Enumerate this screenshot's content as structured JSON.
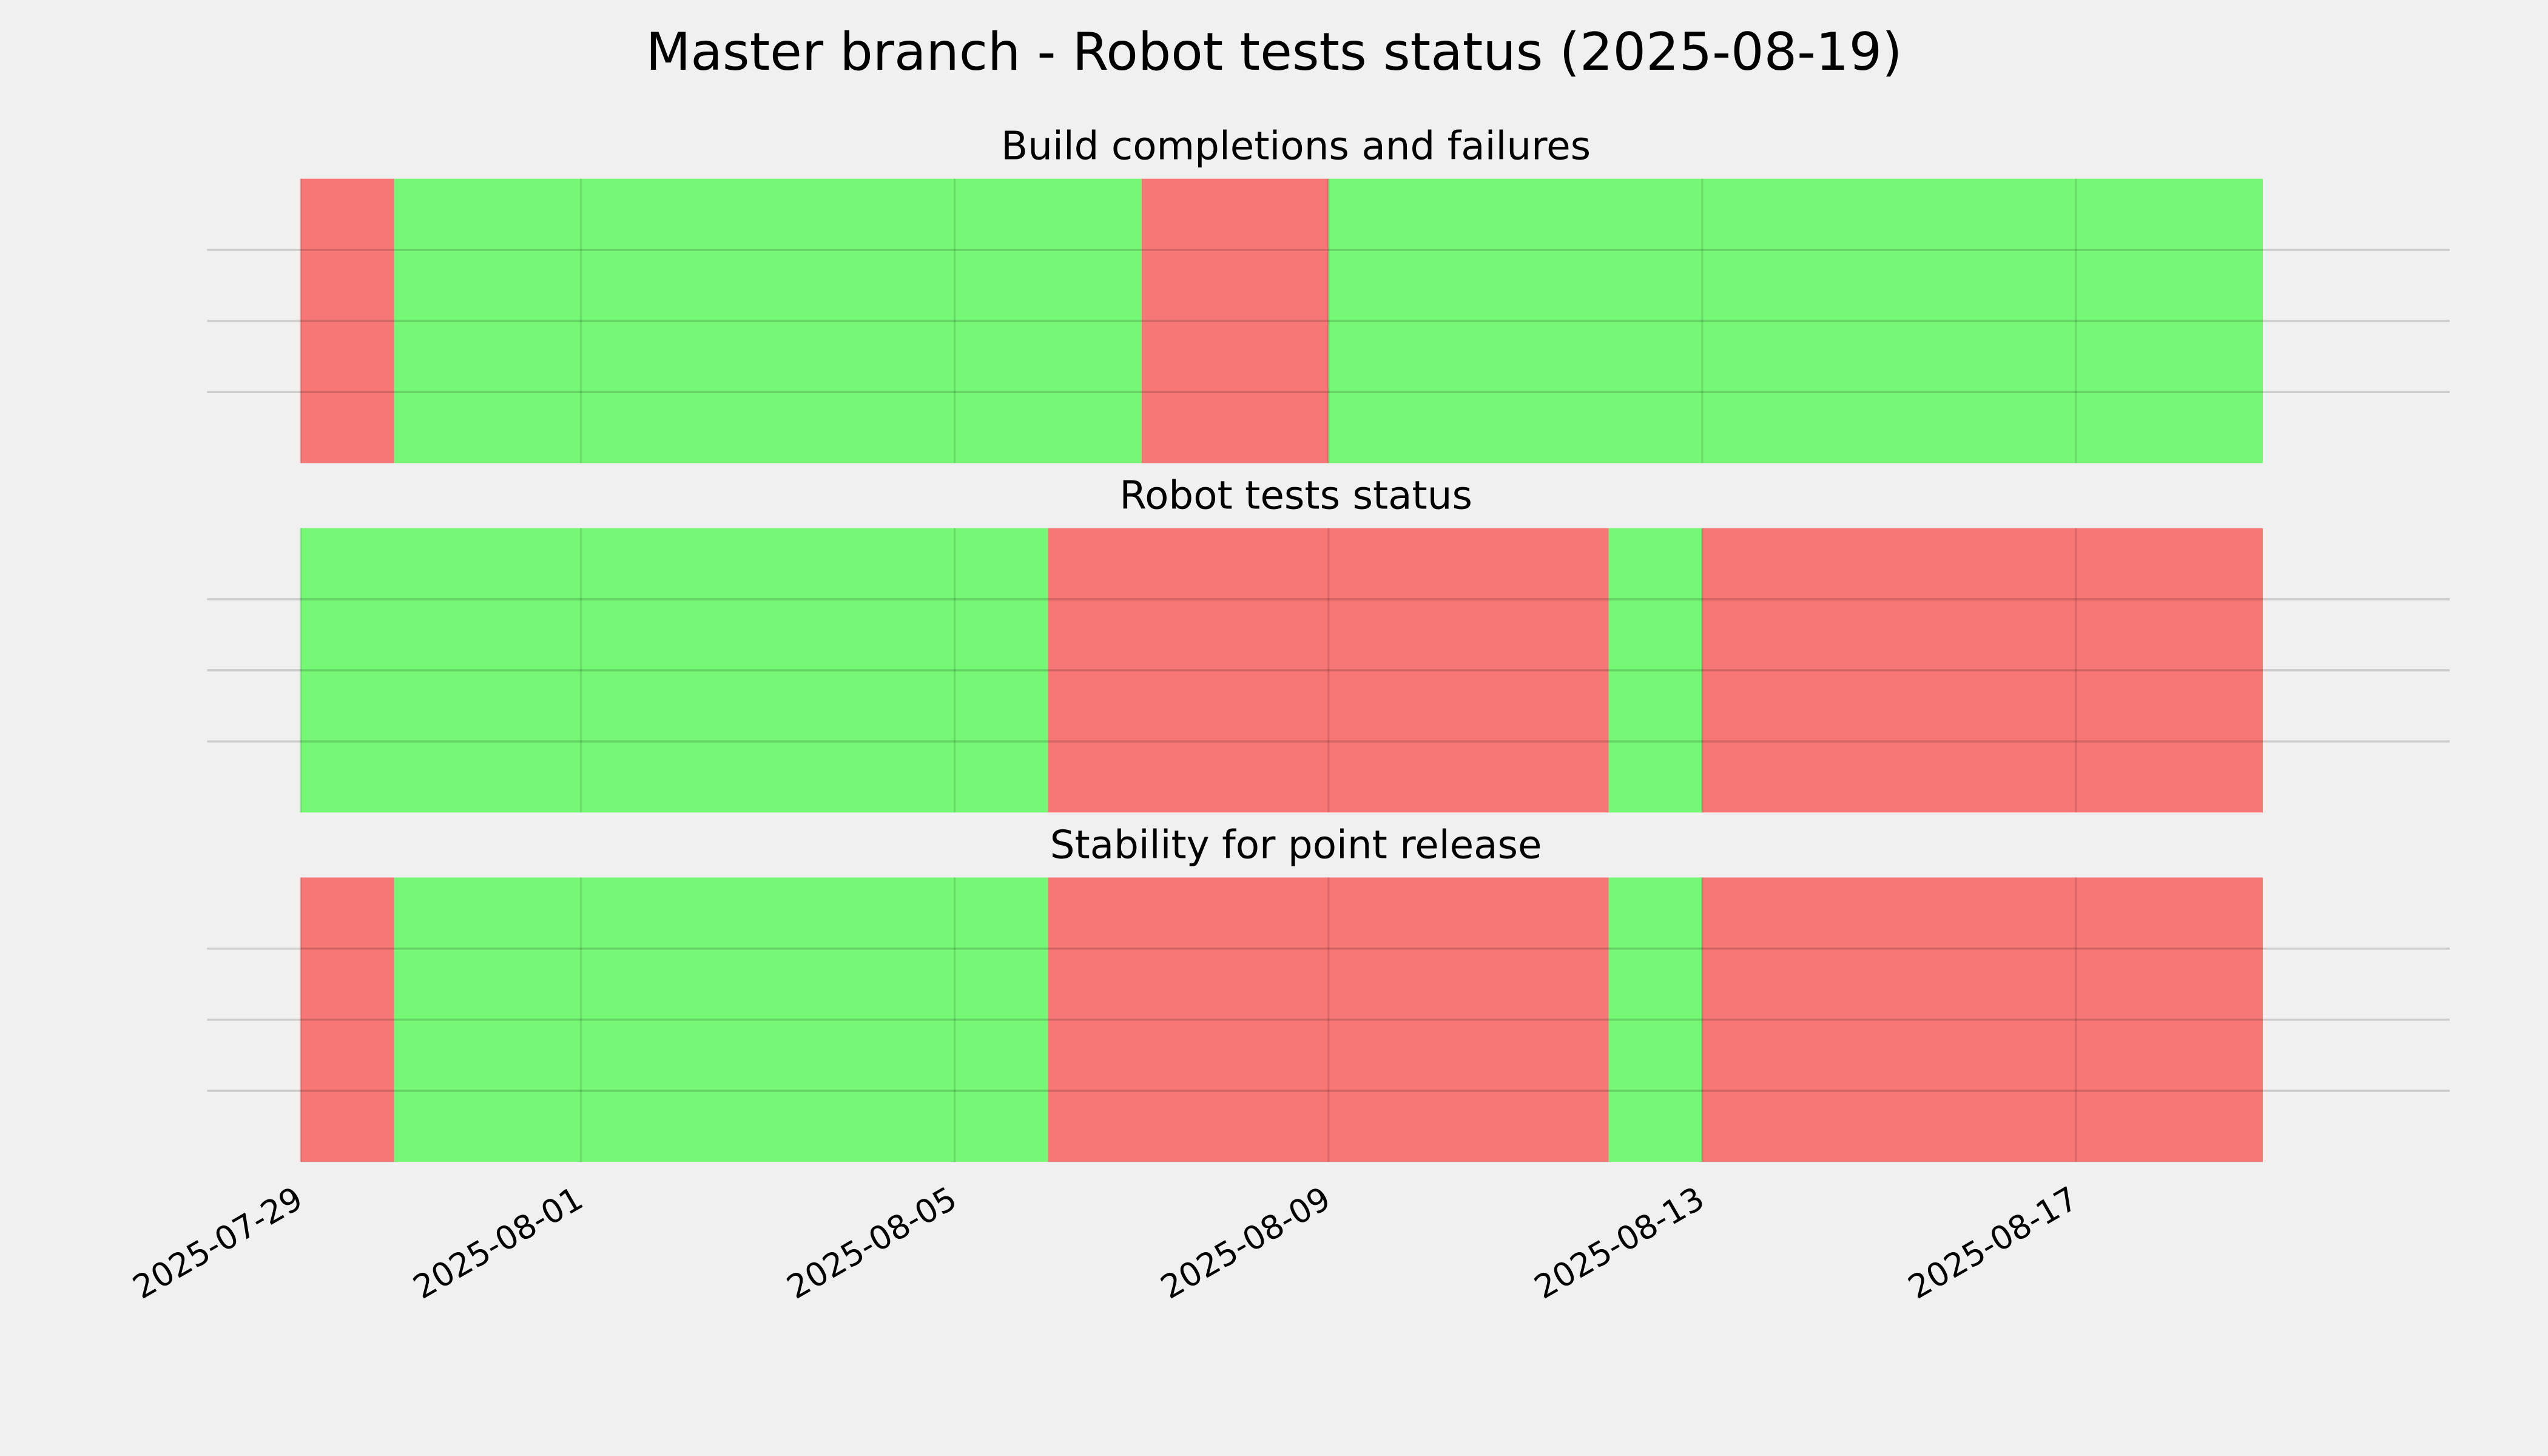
{
  "title": "Master branch - Robot tests status (2025-08-19)",
  "chart_data": [
    {
      "type": "timeline",
      "title": "Build completions and failures",
      "x": [
        "2025-07-29",
        "2025-07-30",
        "2025-08-07",
        "2025-08-09",
        "2025-08-19"
      ],
      "colors": [
        "#f67775",
        "#76f776",
        "#f67775",
        "#76f776"
      ],
      "xlim": [
        "2025-07-28",
        "2025-08-21"
      ],
      "ylim": [
        0,
        1
      ],
      "yticks": [
        0.25,
        0.5,
        0.75
      ],
      "xticks": [
        "2025-07-29",
        "2025-08-01",
        "2025-08-05",
        "2025-08-09",
        "2025-08-13",
        "2025-08-17"
      ],
      "grid": true
    },
    {
      "type": "timeline",
      "title": "Robot tests status",
      "x": [
        "2025-07-29",
        "2025-08-06",
        "2025-08-12",
        "2025-08-13",
        "2025-08-19"
      ],
      "colors": [
        "#76f776",
        "#f67775",
        "#76f776",
        "#f67775"
      ],
      "xlim": [
        "2025-07-28",
        "2025-08-21"
      ],
      "ylim": [
        0,
        1
      ],
      "yticks": [
        0.25,
        0.5,
        0.75
      ],
      "xticks": [
        "2025-07-29",
        "2025-08-01",
        "2025-08-05",
        "2025-08-09",
        "2025-08-13",
        "2025-08-17"
      ],
      "grid": true
    },
    {
      "type": "timeline",
      "title": "Stability for point release",
      "x": [
        "2025-07-29",
        "2025-07-30",
        "2025-08-06",
        "2025-08-12",
        "2025-08-13",
        "2025-08-19"
      ],
      "colors": [
        "#f67775",
        "#76f776",
        "#f67775",
        "#76f776",
        "#f67775"
      ],
      "xlim": [
        "2025-07-28",
        "2025-08-21"
      ],
      "ylim": [
        0,
        1
      ],
      "yticks": [
        0.25,
        0.5,
        0.75
      ],
      "xticks": [
        "2025-07-29",
        "2025-08-01",
        "2025-08-05",
        "2025-08-09",
        "2025-08-13",
        "2025-08-17"
      ],
      "grid": true
    }
  ]
}
